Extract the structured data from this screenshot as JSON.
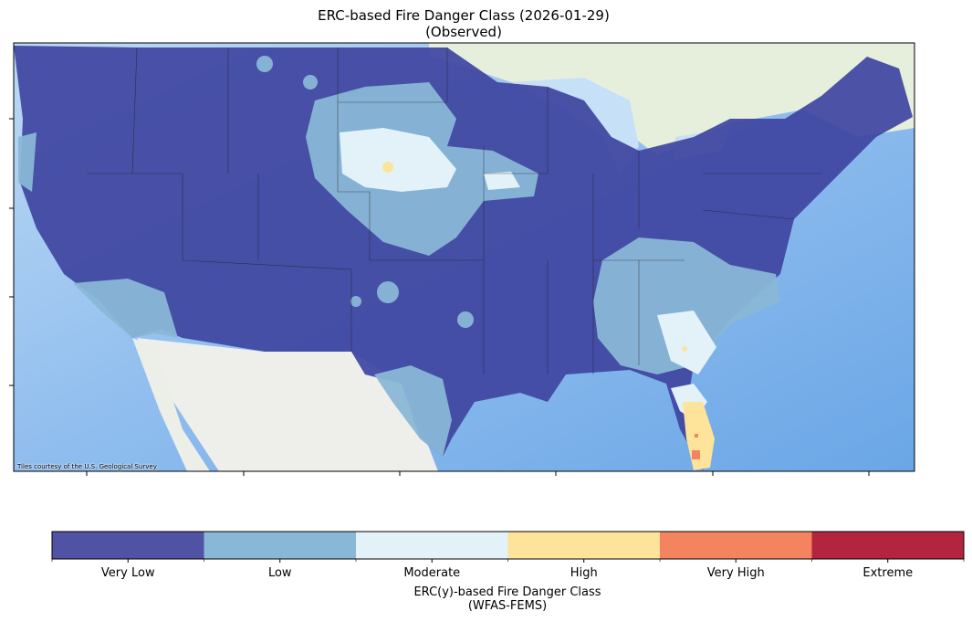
{
  "title": "ERC-based Fire Danger Class (2026-01-29)",
  "subtitle": "(Observed)",
  "attribution": "Tiles courtesy of the U.S. Geological Survey",
  "chart_data": {
    "type": "heatmap",
    "map_region": "Contiguous United States",
    "colorbar": {
      "title": "ERC(y)-based Fire Danger Class",
      "subtitle": "(WFAS-FEMS)",
      "classes": [
        {
          "label": "Very Low",
          "color": "#5053a4"
        },
        {
          "label": "Low",
          "color": "#89b7d6"
        },
        {
          "label": "Moderate",
          "color": "#e3f2f8"
        },
        {
          "label": "High",
          "color": "#fee39a"
        },
        {
          "label": "Very High",
          "color": "#f4845f"
        },
        {
          "label": "Extreme",
          "color": "#b3253f"
        }
      ]
    },
    "x_ticks_count": 6,
    "y_ticks_count": 4,
    "grid": false
  }
}
